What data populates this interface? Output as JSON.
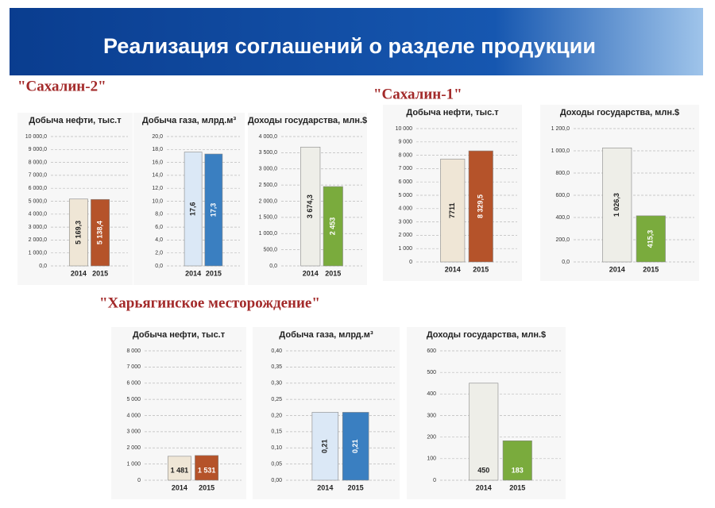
{
  "header": {
    "title": "Реализация соглашений о разделе продукции"
  },
  "sections": [
    {
      "title": "\"Сахалин-2\""
    },
    {
      "title": "\"Сахалин-1\""
    },
    {
      "title": "\"Харьягинское месторождение\""
    }
  ],
  "chart_data": [
    {
      "type": "bar",
      "title": "Добыча нефти, тыс.т",
      "categories": [
        "2014",
        "2015"
      ],
      "values": [
        5169.3,
        5138.4
      ],
      "value_labels": [
        "5 169,3",
        "5 138,4"
      ],
      "colors": [
        "#efe6d6",
        "#b5532a"
      ],
      "grid": true,
      "ylim": [
        0,
        10000
      ],
      "yticks": [
        {
          "value": 0,
          "label": "0,0"
        },
        {
          "value": 1000,
          "label": "1 000,0"
        },
        {
          "value": 2000,
          "label": "2 000,0"
        },
        {
          "value": 3000,
          "label": "3 000,0"
        },
        {
          "value": 4000,
          "label": "4 000,0"
        },
        {
          "value": 5000,
          "label": "5 000,0"
        },
        {
          "value": 6000,
          "label": "6 000,0"
        },
        {
          "value": 7000,
          "label": "7 000,0"
        },
        {
          "value": 8000,
          "label": "8 000,0"
        },
        {
          "value": 9000,
          "label": "9 000,0"
        },
        {
          "value": 10000,
          "label": "10 000,0"
        }
      ]
    },
    {
      "type": "bar",
      "title": "Добыча газа, млрд.м³",
      "categories": [
        "2014",
        "2015"
      ],
      "values": [
        17.6,
        17.3
      ],
      "value_labels": [
        "17,6",
        "17,3"
      ],
      "colors": [
        "#dbe8f6",
        "#3a7fc1"
      ],
      "grid": true,
      "ylim": [
        0,
        20
      ],
      "yticks": [
        {
          "value": 0,
          "label": "0,0"
        },
        {
          "value": 2,
          "label": "2,0"
        },
        {
          "value": 4,
          "label": "4,0"
        },
        {
          "value": 6,
          "label": "6,0"
        },
        {
          "value": 8,
          "label": "8,0"
        },
        {
          "value": 10,
          "label": "10,0"
        },
        {
          "value": 12,
          "label": "12,0"
        },
        {
          "value": 14,
          "label": "14,0"
        },
        {
          "value": 16,
          "label": "16,0"
        },
        {
          "value": 18,
          "label": "18,0"
        },
        {
          "value": 20,
          "label": "20,0"
        }
      ]
    },
    {
      "type": "bar",
      "title": "Доходы государства, млн.$",
      "categories": [
        "2014",
        "2015"
      ],
      "values": [
        3674.3,
        2453
      ],
      "value_labels": [
        "3 674,3",
        "2 453"
      ],
      "colors": [
        "#eeeee8",
        "#7aab3d"
      ],
      "grid": true,
      "ylim": [
        0,
        4000
      ],
      "yticks": [
        {
          "value": 0,
          "label": "0,0"
        },
        {
          "value": 500,
          "label": "500,0"
        },
        {
          "value": 1000,
          "label": "1 000,0"
        },
        {
          "value": 1500,
          "label": "1 500,0"
        },
        {
          "value": 2000,
          "label": "2 000,0"
        },
        {
          "value": 2500,
          "label": "2 500,0"
        },
        {
          "value": 3000,
          "label": "3 000,0"
        },
        {
          "value": 3500,
          "label": "3 500,0"
        },
        {
          "value": 4000,
          "label": "4 000,0"
        }
      ]
    },
    {
      "type": "bar",
      "title": "Добыча нефти, тыс.т",
      "categories": [
        "2014",
        "2015"
      ],
      "values": [
        7711,
        8329.5
      ],
      "value_labels": [
        "7711",
        "8 329,5"
      ],
      "colors": [
        "#efe6d6",
        "#b5532a"
      ],
      "grid": true,
      "ylim": [
        0,
        10000
      ],
      "yticks": [
        0,
        {
          "value": 1000,
          "label": "1 000"
        },
        {
          "value": 2000,
          "label": "2 000"
        },
        {
          "value": 3000,
          "label": "3 000"
        },
        {
          "value": 4000,
          "label": "4 000"
        },
        {
          "value": 5000,
          "label": "5 000"
        },
        {
          "value": 6000,
          "label": "6 000"
        },
        {
          "value": 7000,
          "label": "7 000"
        },
        {
          "value": 8000,
          "label": "8 000"
        },
        {
          "value": 9000,
          "label": "9 000"
        },
        {
          "value": 10000,
          "label": "10 000"
        }
      ]
    },
    {
      "type": "bar",
      "title": "Доходы государства, млн.$",
      "categories": [
        "2014",
        "2015"
      ],
      "values": [
        1026.3,
        415.3
      ],
      "value_labels": [
        "1 026,3",
        "415,3"
      ],
      "colors": [
        "#eeeee8",
        "#7aab3d"
      ],
      "grid": true,
      "ylim": [
        0,
        1200
      ],
      "yticks": [
        {
          "value": 0,
          "label": "0,0"
        },
        {
          "value": 200,
          "label": "200,0"
        },
        {
          "value": 400,
          "label": "400,0"
        },
        {
          "value": 600,
          "label": "600,0"
        },
        {
          "value": 800,
          "label": "800,0"
        },
        {
          "value": 1000,
          "label": "1 000,0"
        },
        {
          "value": 1200,
          "label": "1 200,0"
        }
      ]
    },
    {
      "type": "bar",
      "title": "Добыча нефти, тыс.т",
      "categories": [
        "2014",
        "2015"
      ],
      "values": [
        1481,
        1531
      ],
      "value_labels": [
        "1 481",
        "1 531"
      ],
      "colors": [
        "#efe6d6",
        "#b5532a"
      ],
      "grid": true,
      "ylim": [
        0,
        8000
      ],
      "yticks": [
        0,
        {
          "value": 1000,
          "label": "1 000"
        },
        {
          "value": 2000,
          "label": "2 000"
        },
        {
          "value": 3000,
          "label": "3 000"
        },
        {
          "value": 4000,
          "label": "4 000"
        },
        {
          "value": 5000,
          "label": "5 000"
        },
        {
          "value": 6000,
          "label": "6 000"
        },
        {
          "value": 7000,
          "label": "7 000"
        },
        {
          "value": 8000,
          "label": "8 000"
        }
      ]
    },
    {
      "type": "bar",
      "title": "Добыча газа, млрд.м³",
      "categories": [
        "2014",
        "2015"
      ],
      "values": [
        0.21,
        0.21
      ],
      "value_labels": [
        "0,21",
        "0,21"
      ],
      "colors": [
        "#dbe8f6",
        "#3a7fc1"
      ],
      "grid": true,
      "ylim": [
        0,
        0.4
      ],
      "yticks": [
        {
          "value": 0,
          "label": "0,00"
        },
        {
          "value": 0.05,
          "label": "0,05"
        },
        {
          "value": 0.1,
          "label": "0,10"
        },
        {
          "value": 0.15,
          "label": "0,15"
        },
        {
          "value": 0.2,
          "label": "0,20"
        },
        {
          "value": 0.25,
          "label": "0,25"
        },
        {
          "value": 0.3,
          "label": "0,30"
        },
        {
          "value": 0.35,
          "label": "0,35"
        },
        {
          "value": 0.4,
          "label": "0,40"
        }
      ]
    },
    {
      "type": "bar",
      "title": "Доходы государства, млн.$",
      "categories": [
        "2014",
        "2015"
      ],
      "values": [
        450,
        183
      ],
      "colors": [
        "#eeeee8",
        "#7aab3d"
      ],
      "grid": true,
      "ylim": [
        0,
        600
      ],
      "yticks": [
        0,
        100,
        200,
        300,
        400,
        500,
        600
      ]
    }
  ]
}
